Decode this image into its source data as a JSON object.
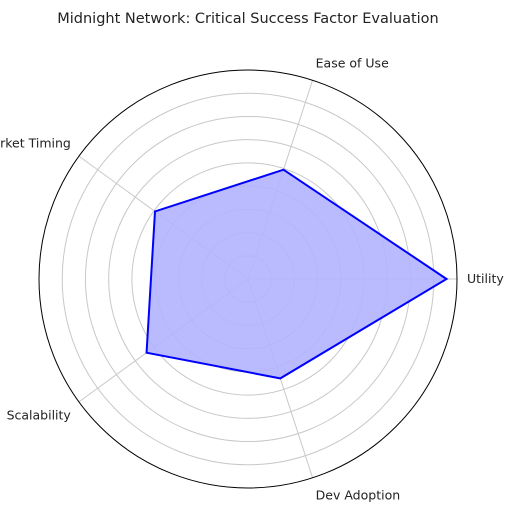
{
  "chart_data": {
    "type": "radar",
    "title": "Midnight Network: Critical Success Factor Evaluation",
    "axes": [
      "Utility",
      "Ease of Use",
      "Market Timing",
      "Scalability",
      "Dev Adoption"
    ],
    "series": [
      {
        "values": [
          9.5,
          5.5,
          5.5,
          6.0,
          5.0
        ]
      }
    ],
    "rlim": [
      0,
      10
    ],
    "ring_count": 8,
    "grid": true,
    "colors": {
      "line": "#0000ff",
      "fill": "#b3b3ff",
      "grid": "#c8c8c8",
      "frame": "#000000"
    }
  }
}
